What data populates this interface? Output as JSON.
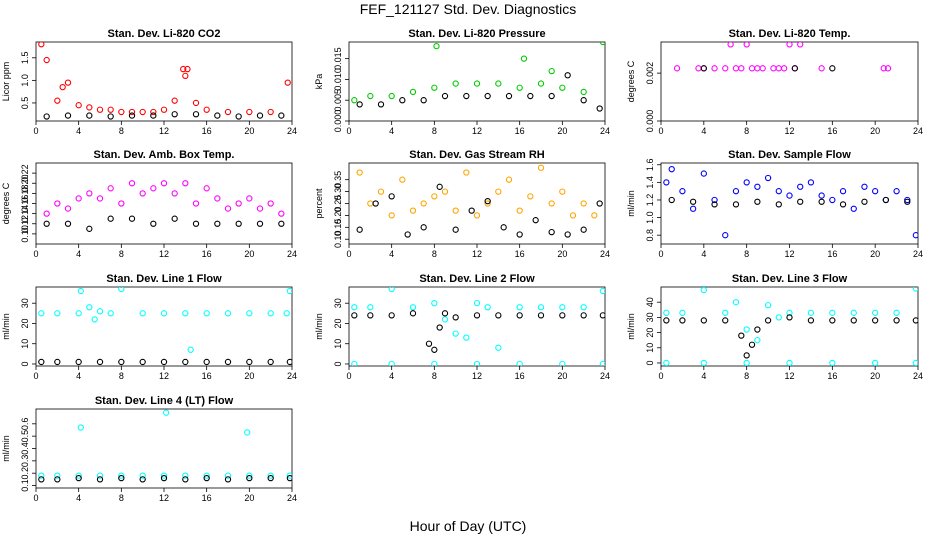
{
  "figure": {
    "title": "FEF_121127  Std. Dev. Diagnostics",
    "xlabel": "Hour of Day (UTC)"
  },
  "colors": {
    "black": "#000000",
    "red": "#ff0000",
    "green": "#00cc00",
    "magenta": "#ff00ff",
    "orange": "#ffa500",
    "blue": "#0000ff",
    "cyan": "#00ffff"
  },
  "chart_data": [
    {
      "type": "scatter",
      "title": "Stan. Dev. Li-820 CO2",
      "ylabel": "Licor ppm",
      "xlim": [
        0,
        24
      ],
      "ylim": [
        0.1,
        1.85
      ],
      "xticks": [
        "0",
        "4",
        "8",
        "12",
        "16",
        "20",
        "24"
      ],
      "yticks": [
        "0.5",
        "1.0",
        "1.5"
      ],
      "grid": false,
      "series": [
        {
          "color": "red",
          "x": [
            0.5,
            1,
            2,
            2.5,
            3,
            4,
            5,
            6,
            7,
            8,
            9,
            10,
            11,
            12,
            13,
            13.8,
            14,
            14.2,
            15,
            16,
            18,
            20,
            22,
            23.6
          ],
          "y": [
            1.8,
            1.45,
            0.55,
            0.85,
            0.95,
            0.45,
            0.4,
            0.35,
            0.35,
            0.3,
            0.3,
            0.3,
            0.3,
            0.35,
            0.55,
            1.25,
            1.1,
            1.25,
            0.5,
            0.35,
            0.3,
            0.3,
            0.3,
            0.95
          ]
        },
        {
          "color": "black",
          "x": [
            1,
            3,
            5,
            7,
            9,
            11,
            13,
            15,
            17,
            19,
            21,
            23
          ],
          "y": [
            0.2,
            0.22,
            0.22,
            0.2,
            0.22,
            0.22,
            0.25,
            0.25,
            0.22,
            0.2,
            0.22,
            0.22
          ]
        }
      ]
    },
    {
      "type": "scatter",
      "title": "Stan. Dev. Li-820 Pressure",
      "ylabel": "kPa",
      "xlim": [
        0,
        24
      ],
      "ylim": [
        0,
        0.019
      ],
      "xticks": [
        "0",
        "4",
        "8",
        "12",
        "16",
        "20",
        "24"
      ],
      "yticks": [
        "0.000",
        "0.005",
        "0.010",
        "0.015"
      ],
      "grid": false,
      "series": [
        {
          "color": "green",
          "x": [
            0.5,
            2,
            4,
            6,
            8,
            8.2,
            10,
            12,
            14,
            16,
            16.4,
            18,
            19,
            20,
            22,
            23.8
          ],
          "y": [
            0.005,
            0.006,
            0.006,
            0.007,
            0.008,
            0.018,
            0.009,
            0.009,
            0.009,
            0.008,
            0.015,
            0.009,
            0.012,
            0.008,
            0.007,
            0.019
          ]
        },
        {
          "color": "black",
          "x": [
            1,
            3,
            5,
            7,
            9,
            11,
            13,
            15,
            17,
            19,
            20.5,
            22,
            23.5
          ],
          "y": [
            0.004,
            0.004,
            0.005,
            0.005,
            0.006,
            0.006,
            0.006,
            0.006,
            0.006,
            0.006,
            0.011,
            0.005,
            0.003
          ]
        }
      ]
    },
    {
      "type": "scatter",
      "title": "Stan. Dev. Li-820 Temp.",
      "ylabel": "degrees C",
      "xlim": [
        0,
        24
      ],
      "ylim": [
        0,
        0.0033
      ],
      "xticks": [
        "0",
        "4",
        "8",
        "12",
        "16",
        "20",
        "24"
      ],
      "yticks": [
        "0.000",
        "0.002"
      ],
      "grid": false,
      "series": [
        {
          "color": "magenta",
          "x": [
            1.5,
            3.5,
            4,
            5,
            6,
            6.5,
            7,
            7.5,
            8,
            8.5,
            9,
            9.5,
            10.5,
            11,
            11.5,
            12,
            12.5,
            13,
            15,
            20.8,
            21.2
          ],
          "y": [
            0.0022,
            0.0022,
            0.0022,
            0.0022,
            0.0022,
            0.0032,
            0.0022,
            0.0022,
            0.0032,
            0.0022,
            0.0022,
            0.0022,
            0.0022,
            0.0022,
            0.0022,
            0.0032,
            0.0022,
            0.0032,
            0.0022,
            0.0022,
            0.0022
          ]
        },
        {
          "color": "black",
          "x": [
            4,
            12.5,
            16
          ],
          "y": [
            0.0022,
            0.0022,
            0.0022
          ]
        }
      ]
    },
    {
      "type": "scatter",
      "title": "Stan. Dev. Amb. Box Temp.",
      "ylabel": "degrees C",
      "xlim": [
        0,
        24
      ],
      "ylim": [
        0.08,
        0.24
      ],
      "xticks": [
        "0",
        "4",
        "8",
        "12",
        "16",
        "20",
        "24"
      ],
      "yticks": [
        "0.10",
        "0.12",
        "0.14",
        "0.16",
        "0.18",
        "0.20",
        "0.22"
      ],
      "grid": false,
      "series": [
        {
          "color": "magenta",
          "x": [
            1,
            2,
            3,
            4,
            5,
            6,
            7,
            8,
            9,
            10,
            11,
            12,
            13,
            14,
            15,
            16,
            17,
            18,
            19,
            20,
            21,
            22,
            23
          ],
          "y": [
            0.14,
            0.16,
            0.15,
            0.17,
            0.18,
            0.17,
            0.19,
            0.16,
            0.2,
            0.18,
            0.19,
            0.2,
            0.18,
            0.2,
            0.16,
            0.19,
            0.17,
            0.15,
            0.16,
            0.17,
            0.15,
            0.16,
            0.14
          ]
        },
        {
          "color": "black",
          "x": [
            1,
            3,
            5,
            7,
            9,
            11,
            13,
            15,
            17,
            19,
            21,
            23
          ],
          "y": [
            0.12,
            0.12,
            0.11,
            0.13,
            0.13,
            0.12,
            0.13,
            0.12,
            0.12,
            0.12,
            0.12,
            0.12
          ]
        }
      ]
    },
    {
      "type": "scatter",
      "title": "Stan. Dev. Gas Stream RH",
      "ylabel": "percent",
      "xlim": [
        0,
        24
      ],
      "ylim": [
        0.08,
        0.42
      ],
      "xticks": [
        "0",
        "4",
        "8",
        "12",
        "16",
        "20",
        "24"
      ],
      "yticks": [
        "0.10",
        "0.15",
        "0.20",
        "0.25",
        "0.30",
        "0.35"
      ],
      "grid": false,
      "series": [
        {
          "color": "orange",
          "x": [
            1,
            2,
            3,
            4,
            5,
            6,
            7,
            8,
            9,
            10,
            11,
            12,
            13,
            14,
            15,
            16,
            17,
            18,
            19,
            20,
            21,
            22,
            23
          ],
          "y": [
            0.38,
            0.25,
            0.3,
            0.2,
            0.35,
            0.22,
            0.25,
            0.28,
            0.3,
            0.22,
            0.38,
            0.2,
            0.25,
            0.3,
            0.35,
            0.22,
            0.28,
            0.4,
            0.25,
            0.3,
            0.2,
            0.25,
            0.2
          ]
        },
        {
          "color": "black",
          "x": [
            1,
            2.5,
            4,
            5.5,
            7,
            8.5,
            10,
            11.5,
            13,
            14.5,
            16,
            17.5,
            19,
            20.5,
            22,
            23.5
          ],
          "y": [
            0.14,
            0.25,
            0.28,
            0.12,
            0.15,
            0.32,
            0.14,
            0.22,
            0.26,
            0.15,
            0.12,
            0.18,
            0.13,
            0.12,
            0.14,
            0.25
          ]
        }
      ]
    },
    {
      "type": "scatter",
      "title": "Stan. Dev. Sample Flow",
      "ylabel": "ml/min",
      "xlim": [
        0,
        24
      ],
      "ylim": [
        0.7,
        1.62
      ],
      "xticks": [
        "0",
        "4",
        "8",
        "12",
        "16",
        "20",
        "24"
      ],
      "yticks": [
        "0.8",
        "1.0",
        "1.2",
        "1.4",
        "1.6"
      ],
      "grid": false,
      "series": [
        {
          "color": "blue",
          "x": [
            0.5,
            1,
            2,
            3,
            4,
            5,
            6,
            7,
            8,
            9,
            10,
            11,
            12,
            13,
            14,
            15,
            16,
            17,
            18,
            19,
            20,
            21,
            22,
            23,
            23.8
          ],
          "y": [
            1.4,
            1.55,
            1.3,
            1.1,
            1.5,
            1.2,
            0.8,
            1.3,
            1.4,
            1.35,
            1.45,
            1.3,
            1.25,
            1.35,
            1.4,
            1.25,
            1.2,
            1.3,
            1.1,
            1.35,
            1.3,
            1.2,
            1.3,
            1.2,
            0.8
          ]
        },
        {
          "color": "black",
          "x": [
            1,
            3,
            5,
            7,
            9,
            11,
            13,
            15,
            17,
            19,
            21,
            23
          ],
          "y": [
            1.2,
            1.18,
            1.15,
            1.15,
            1.18,
            1.15,
            1.18,
            1.18,
            1.15,
            1.18,
            1.2,
            1.18
          ]
        }
      ]
    },
    {
      "type": "scatter",
      "title": "Stan. Dev. Line 1 Flow",
      "ylabel": "ml/min",
      "xlim": [
        0,
        24
      ],
      "ylim": [
        -1,
        38
      ],
      "xticks": [
        "0",
        "4",
        "8",
        "12",
        "16",
        "20",
        "24"
      ],
      "yticks": [
        "0",
        "10",
        "20",
        "30"
      ],
      "grid": false,
      "series": [
        {
          "color": "cyan",
          "x": [
            0.5,
            2,
            4,
            4.2,
            5,
            5.5,
            6,
            7,
            8,
            10,
            12,
            14,
            14.5,
            16,
            18,
            20,
            22,
            23.5,
            23.8
          ],
          "y": [
            25,
            25,
            25,
            36,
            28,
            22,
            26,
            25,
            37,
            25,
            25,
            25,
            7,
            25,
            25,
            25,
            25,
            25,
            36
          ]
        },
        {
          "color": "black",
          "x": [
            0.5,
            2,
            4,
            6,
            8,
            10,
            12,
            14,
            16,
            18,
            20,
            22,
            23.8
          ],
          "y": [
            1,
            1,
            1,
            1,
            1,
            1,
            1,
            1,
            1,
            1,
            1,
            1,
            1
          ]
        }
      ]
    },
    {
      "type": "scatter",
      "title": "Stan. Dev. Line 2 Flow",
      "ylabel": "ml/min",
      "xlim": [
        0,
        24
      ],
      "ylim": [
        -1,
        38
      ],
      "xticks": [
        "0",
        "4",
        "8",
        "12",
        "16",
        "20",
        "24"
      ],
      "yticks": [
        "0",
        "10",
        "20",
        "30"
      ],
      "grid": false,
      "series": [
        {
          "color": "cyan",
          "x": [
            0.5,
            2,
            4,
            6,
            8,
            9,
            10,
            11,
            12,
            13,
            14,
            16,
            18,
            20,
            22,
            23.8
          ],
          "y": [
            28,
            28,
            37,
            28,
            30,
            22,
            15,
            13,
            30,
            28,
            8,
            28,
            28,
            28,
            28,
            36
          ]
        },
        {
          "color": "black",
          "x": [
            0.5,
            2,
            4,
            6,
            7.5,
            8,
            8.5,
            9,
            10,
            12,
            14,
            16,
            18,
            20,
            22,
            23.8
          ],
          "y": [
            24,
            24,
            24,
            25,
            10,
            7,
            18,
            25,
            23,
            24,
            24,
            24,
            24,
            24,
            24,
            24
          ]
        },
        {
          "color": "cyan",
          "x": [
            0.5,
            4,
            8,
            12,
            16,
            20,
            23.8
          ],
          "y": [
            0,
            0,
            0,
            0,
            0,
            0,
            0
          ]
        }
      ]
    },
    {
      "type": "scatter",
      "title": "Stan. Dev. Line 3 Flow",
      "ylabel": "ml/min",
      "xlim": [
        0,
        24
      ],
      "ylim": [
        -2,
        50
      ],
      "xticks": [
        "0",
        "4",
        "8",
        "12",
        "16",
        "20",
        "24"
      ],
      "yticks": [
        "0",
        "10",
        "20",
        "30",
        "40"
      ],
      "grid": false,
      "series": [
        {
          "color": "cyan",
          "x": [
            0.5,
            2,
            4,
            6,
            7,
            8,
            9,
            10,
            11,
            12,
            14,
            16,
            18,
            20,
            22,
            23.8
          ],
          "y": [
            33,
            33,
            48,
            33,
            40,
            22,
            15,
            38,
            30,
            33,
            33,
            33,
            33,
            33,
            33,
            49
          ]
        },
        {
          "color": "black",
          "x": [
            0.5,
            2,
            4,
            6,
            7.5,
            8,
            8.5,
            9,
            10,
            12,
            14,
            16,
            18,
            20,
            22,
            23.8
          ],
          "y": [
            28,
            28,
            28,
            28,
            18,
            5,
            12,
            22,
            28,
            30,
            28,
            28,
            28,
            28,
            28,
            28
          ]
        },
        {
          "color": "cyan",
          "x": [
            0.5,
            4,
            8,
            12,
            16,
            20,
            23.8
          ],
          "y": [
            0,
            0,
            0,
            0,
            0,
            0,
            0
          ]
        }
      ]
    },
    {
      "type": "scatter",
      "title": "Stan. Dev. Line 4 (LT) Flow",
      "ylabel": "ml/min",
      "xlim": [
        0,
        24
      ],
      "ylim": [
        0.08,
        0.72
      ],
      "xticks": [
        "0",
        "4",
        "8",
        "12",
        "16",
        "20",
        "24"
      ],
      "yticks": [
        "0.1",
        "0.2",
        "0.3",
        "0.4",
        "0.5",
        "0.6"
      ],
      "grid": false,
      "series": [
        {
          "color": "cyan",
          "x": [
            0.5,
            2,
            4,
            4.2,
            6,
            8,
            10,
            12,
            12.2,
            14,
            16,
            18,
            19.8,
            20,
            22,
            23.8
          ],
          "y": [
            0.18,
            0.18,
            0.18,
            0.57,
            0.18,
            0.18,
            0.18,
            0.18,
            0.69,
            0.18,
            0.18,
            0.18,
            0.53,
            0.18,
            0.18,
            0.18
          ]
        },
        {
          "color": "black",
          "x": [
            0.5,
            2,
            4,
            6,
            8,
            10,
            12,
            14,
            16,
            18,
            20,
            22,
            23.8
          ],
          "y": [
            0.15,
            0.15,
            0.16,
            0.15,
            0.16,
            0.15,
            0.16,
            0.15,
            0.16,
            0.15,
            0.16,
            0.16,
            0.16
          ]
        }
      ]
    }
  ]
}
